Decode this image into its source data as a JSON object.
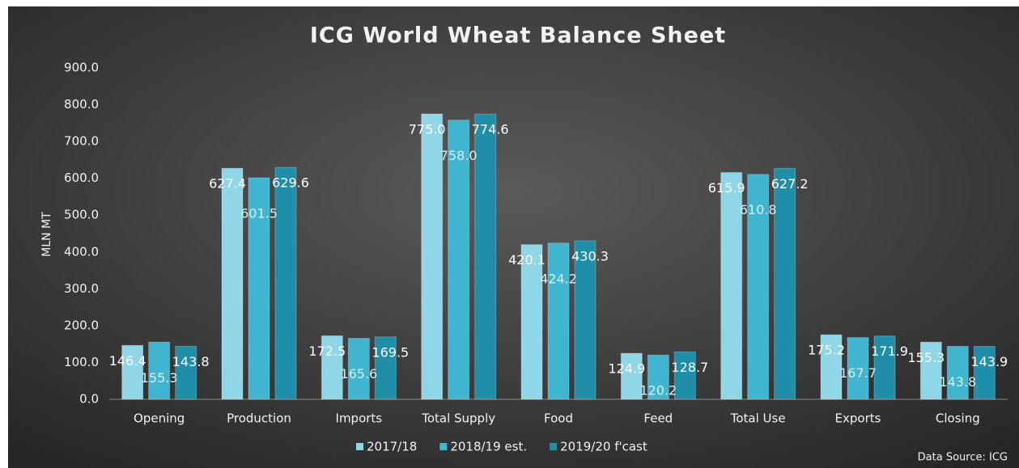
{
  "chart_data": {
    "type": "bar",
    "title": "ICG World Wheat Balance Sheet",
    "y_label": "MLN MT",
    "annotation": "Data Source: ICG",
    "categories": [
      "Opening",
      "Production",
      "Imports",
      "Total Supply",
      "Food",
      "Feed",
      "Total Use",
      "Exports",
      "Closing"
    ],
    "series": [
      {
        "name": "2017/18",
        "color": "#8fd6e6",
        "values": [
          146.4,
          627.4,
          172.5,
          775.0,
          420.1,
          124.9,
          615.9,
          175.2,
          155.3
        ],
        "value_labels": [
          "146.4",
          "627.4",
          "172.5",
          "775.0",
          "420.1",
          "124.9",
          "615.9",
          "175.2",
          "155.3"
        ]
      },
      {
        "name": "2018/19 est.",
        "color": "#3fb5d0",
        "values": [
          155.3,
          601.5,
          165.6,
          758.0,
          424.2,
          120.2,
          610.8,
          167.7,
          143.8
        ],
        "value_labels": [
          "155.3",
          "601.5",
          "165.6",
          "758.0",
          "424.2",
          "120.2",
          "610.8",
          "167.7",
          "143.8"
        ]
      },
      {
        "name": "2019/20 f'cast",
        "color": "#1f8ea8",
        "values": [
          143.8,
          629.6,
          169.5,
          774.6,
          430.3,
          128.7,
          627.2,
          171.9,
          143.9
        ],
        "value_labels": [
          "143.8",
          "629.6",
          "169.5",
          "774.6",
          "430.3",
          "128.7",
          "627.2",
          "171.9",
          "143.9"
        ]
      }
    ],
    "ylim": [
      0,
      900
    ],
    "yticks": [
      {
        "value": 0,
        "label": "0.0"
      },
      {
        "value": 100,
        "label": "100.0"
      },
      {
        "value": 200,
        "label": "200.0"
      },
      {
        "value": 300,
        "label": "300.0"
      },
      {
        "value": 400,
        "label": "400.0"
      },
      {
        "value": 500,
        "label": "500.0"
      },
      {
        "value": 600,
        "label": "600.0"
      },
      {
        "value": 700,
        "label": "700.0"
      },
      {
        "value": 800,
        "label": "800.0"
      },
      {
        "value": 900,
        "label": "900.0"
      }
    ],
    "grid": false,
    "legend": "bottom"
  }
}
